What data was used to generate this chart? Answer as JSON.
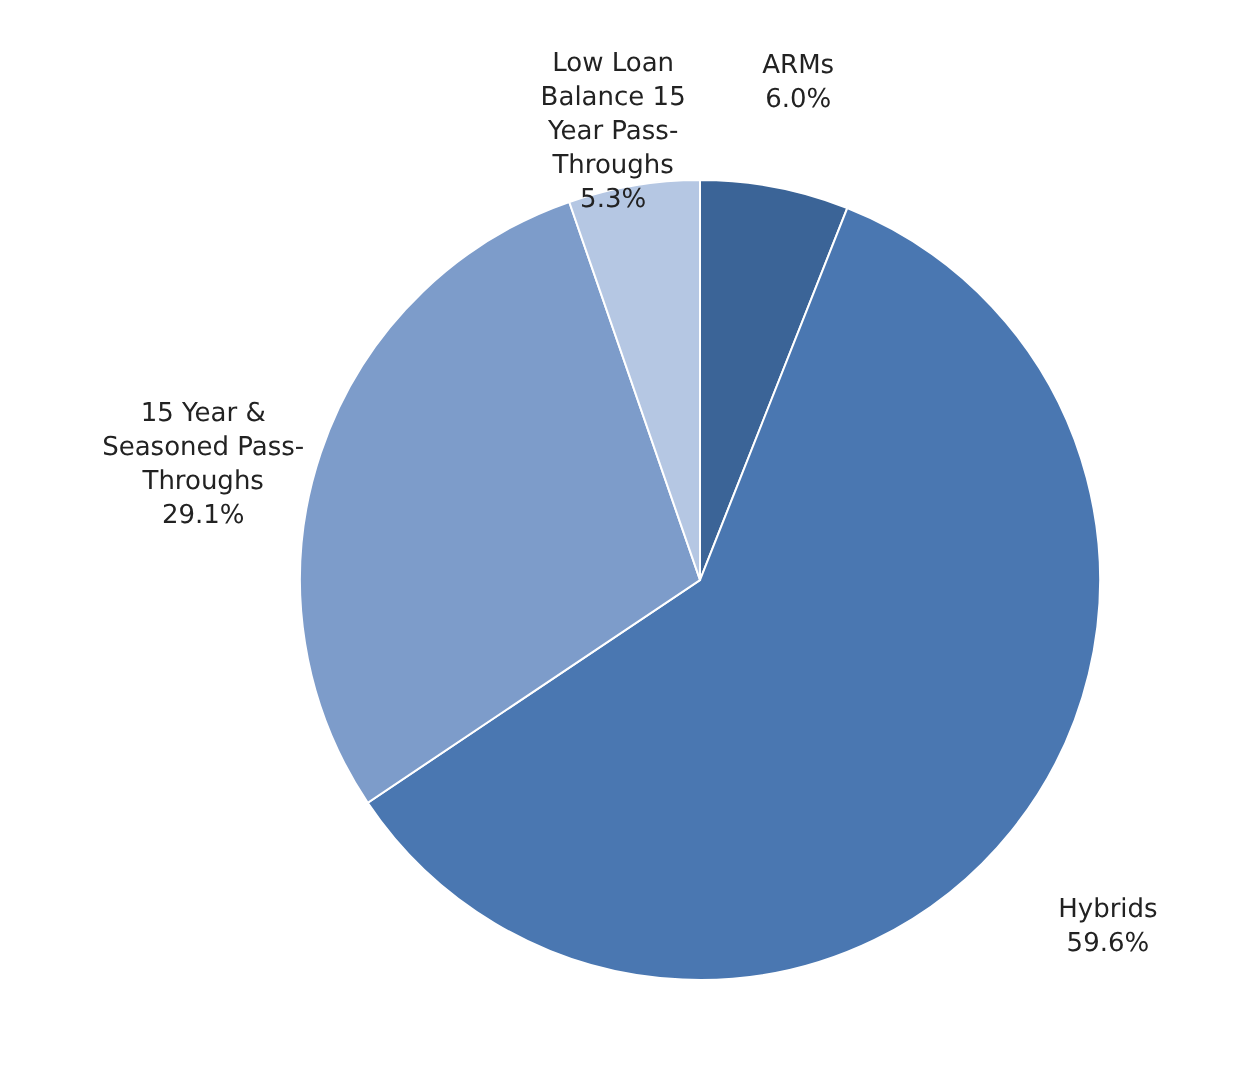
{
  "chart_data": {
    "type": "pie",
    "categories": [
      "ARMs",
      "Hybrids",
      "15 Year & Seasoned Pass-Throughs",
      "Low Loan Balance 15 Year Pass-Throughs"
    ],
    "values": [
      6.0,
      59.6,
      29.1,
      5.3
    ],
    "colors": [
      "#3b6497",
      "#4a77b1",
      "#7d9cca",
      "#b5c7e3"
    ],
    "value_labels": [
      "6.0%",
      "59.6%",
      "29.1%",
      "5.3%"
    ],
    "legend": false
  }
}
